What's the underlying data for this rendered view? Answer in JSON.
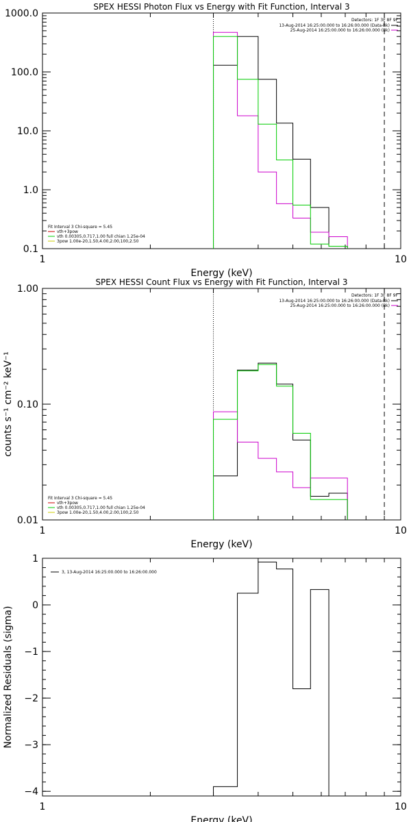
{
  "chart_data": [
    {
      "type": "line",
      "title": "SPEX HESSI Photon Flux vs Energy with Fit Function, Interval 3",
      "xlabel": "Energy (keV)",
      "ylabel": "",
      "xscale": "log",
      "yscale": "log",
      "xlim": [
        1,
        10
      ],
      "ylim": [
        0.1,
        1000.0
      ],
      "xticks": [
        {
          "v": 1,
          "label": "1"
        },
        {
          "v": 10,
          "label": "10"
        }
      ],
      "yticks": [
        {
          "v": 0.1,
          "label": "0.1"
        },
        {
          "v": 1.0,
          "label": "1.0"
        },
        {
          "v": 10.0,
          "label": "10.0"
        },
        {
          "v": 100.0,
          "label": "100.0"
        },
        {
          "v": 1000.0,
          "label": "1000.0"
        }
      ],
      "vlines": [
        {
          "x": 3.0,
          "style": "dotted",
          "color": "#000000"
        },
        {
          "x": 9.0,
          "style": "dashed",
          "color": "#000000"
        }
      ],
      "legend_topright": {
        "header": "Detectors: 1F 3F 8F 9F",
        "entries": [
          {
            "text": "13-Aug-2014 16:25:00.000 to 16:26:00.000 (Data-Bk)",
            "color": "#000000"
          },
          {
            "text": "25-Aug-2014 16:25:00.000 to 16:26:00.000 (Bk)",
            "color": "#cc00cc"
          }
        ]
      },
      "legend_bottomleft": {
        "header": "Fit Interval 3   Chi-square = 5.45",
        "entries": [
          {
            "text": "vth+3pow",
            "color": "#cc0000"
          },
          {
            "text": "vth 0.00305,0.717,1.00  full chian 1.25e-04",
            "color": "#00cc00"
          },
          {
            "text": "3pow 1.00e-20,1.50,4.00,2.00,100,2.50",
            "color": "#cccc00"
          }
        ]
      },
      "edges": [
        3.0,
        3.5,
        4.0,
        4.5,
        5.0,
        5.6,
        6.3,
        7.1,
        8.0,
        9.0
      ],
      "series": [
        {
          "color": "#000000",
          "values": [
            130,
            400,
            75,
            13.5,
            3.3,
            0.5,
            0.11
          ]
        },
        {
          "color": "#cc00cc",
          "values": [
            470,
            18,
            2.0,
            0.58,
            0.33,
            0.19,
            0.16
          ]
        },
        {
          "color": "#00cc00",
          "values": [
            400,
            75,
            13.0,
            3.2,
            0.55,
            0.12,
            0.11
          ]
        }
      ]
    },
    {
      "type": "line",
      "title": "SPEX HESSI Count Flux vs Energy with Fit Function, Interval 3",
      "xlabel": "Energy (keV)",
      "ylabel": "counts s⁻¹ cm⁻² keV⁻¹",
      "xscale": "log",
      "yscale": "log",
      "xlim": [
        1,
        10
      ],
      "ylim": [
        0.01,
        1.0
      ],
      "xticks": [
        {
          "v": 1,
          "label": "1"
        },
        {
          "v": 10,
          "label": "10"
        }
      ],
      "yticks": [
        {
          "v": 0.01,
          "label": "0.01"
        },
        {
          "v": 0.1,
          "label": "0.10"
        },
        {
          "v": 1.0,
          "label": "1.00"
        }
      ],
      "vlines": [
        {
          "x": 3.0,
          "style": "dotted",
          "color": "#000000"
        },
        {
          "x": 9.0,
          "style": "dashed",
          "color": "#000000"
        }
      ],
      "legend_topright": {
        "header": "Detectors: 1F 3F 8F 9F",
        "entries": [
          {
            "text": "13-Aug-2014 16:25:00.000 to 16:26:00.000 (Data-Bk)",
            "color": "#000000"
          },
          {
            "text": "25-Aug-2014 16:25:00.000 to 16:26:00.000 (Bk)",
            "color": "#cc00cc"
          }
        ]
      },
      "legend_bottomleft": {
        "header": "Fit Interval 3   Chi-square = 5.45",
        "entries": [
          {
            "text": "vth+3pow",
            "color": "#cc0000"
          },
          {
            "text": "vth 0.00305,0.717,1.00  full chian 1.25e-04",
            "color": "#00cc00"
          },
          {
            "text": "3pow 1.00e-20,1.50,4.00,2.00,100,2.50",
            "color": "#cccc00"
          }
        ]
      },
      "edges": [
        3.0,
        3.5,
        4.0,
        4.5,
        5.0,
        5.6,
        6.3,
        7.1,
        8.0,
        9.0
      ],
      "series": [
        {
          "color": "#000000",
          "values": [
            0.024,
            0.197,
            0.226,
            0.149,
            0.049,
            0.016,
            0.017
          ]
        },
        {
          "color": "#cc00cc",
          "values": [
            0.086,
            0.047,
            0.034,
            0.026,
            0.019,
            0.023,
            0.023
          ]
        },
        {
          "color": "#00cc00",
          "values": [
            0.074,
            0.194,
            0.22,
            0.143,
            0.056,
            0.015,
            0.015
          ]
        }
      ]
    },
    {
      "type": "line",
      "title": "",
      "xlabel": "Energy (keV)",
      "ylabel": "Normalized Residuals (sigma)",
      "xscale": "log",
      "yscale": "linear",
      "xlim": [
        1,
        10
      ],
      "ylim": [
        -4.1,
        1.0
      ],
      "xticks": [
        {
          "v": 1,
          "label": "1"
        },
        {
          "v": 10,
          "label": "10"
        }
      ],
      "yticks": [
        {
          "v": -4,
          "label": "−4"
        },
        {
          "v": -3,
          "label": "−3"
        },
        {
          "v": -2,
          "label": "−2"
        },
        {
          "v": -1,
          "label": "−1"
        },
        {
          "v": 0,
          "label": "0"
        },
        {
          "v": 1,
          "label": "1"
        }
      ],
      "vlines": [],
      "legend_topleft": {
        "entries": [
          {
            "text": "3, 13-Aug-2014 16:25:00.000 to 16:26:00.000",
            "color": "#000000"
          }
        ]
      },
      "edges": [
        3.0,
        3.5,
        4.0,
        4.5,
        5.0,
        5.6,
        6.3,
        7.1,
        8.0,
        9.0
      ],
      "series": [
        {
          "color": "#000000",
          "values": [
            -3.9,
            0.25,
            0.92,
            0.77,
            -1.8,
            0.33,
            -4.1
          ]
        }
      ]
    }
  ]
}
